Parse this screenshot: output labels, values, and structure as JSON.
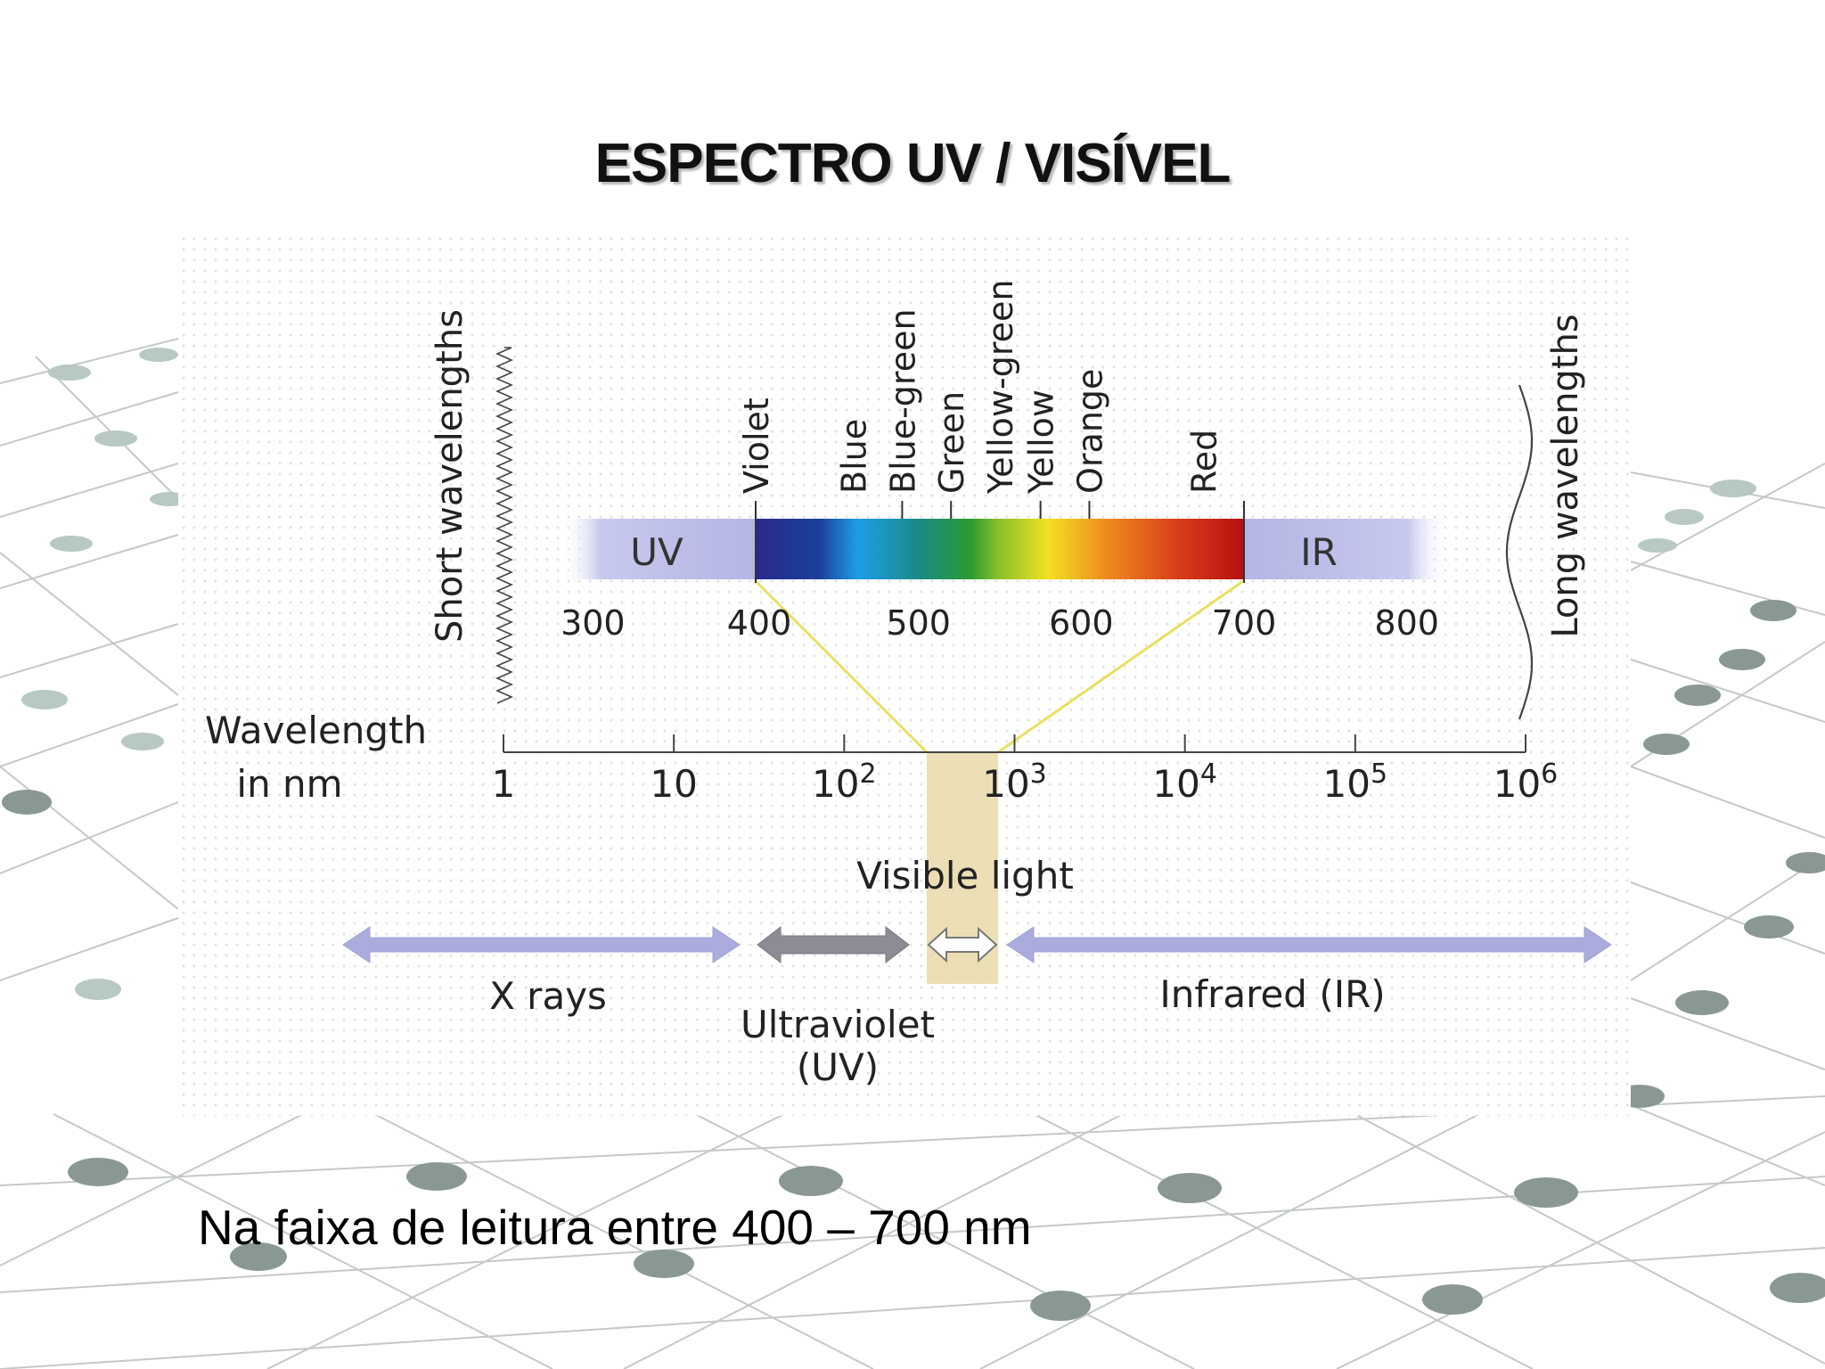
{
  "title": "ESPECTRO UV / VISÍVEL",
  "footer": "Na faixa de leitura entre 400 – 700 nm",
  "labels": {
    "short_wavelengths": "Short wavelengths",
    "long_wavelengths": "Long wavelengths",
    "uv_band": "UV",
    "ir_band": "IR",
    "wavelength": "Wavelength",
    "in_nm": "in nm",
    "visible_light": "Visible light",
    "x_rays": "X rays",
    "ultraviolet": "Ultraviolet",
    "ultraviolet_abbr": "(UV)",
    "infrared": "Infrared (IR)"
  },
  "colors": {
    "violet": "#2a2a8a",
    "blue": "#1e9ee8",
    "green": "#2a9a30",
    "yellow": "#f2e020",
    "orange": "#ee8a1e",
    "red": "#b80f10",
    "uv_ir_band": "#b9bbe6",
    "highlight": "#ead9a8",
    "connector": "#e8e060",
    "arrow": "#a9acdd",
    "uv_arrow": "#8c8c96"
  },
  "chart_data": {
    "type": "diagram",
    "visible_colors": [
      {
        "name": "Violet",
        "nm": 400
      },
      {
        "name": "Blue",
        "nm": 460
      },
      {
        "name": "Blue-green",
        "nm": 490
      },
      {
        "name": "Green",
        "nm": 520
      },
      {
        "name": "Yellow-green",
        "nm": 550
      },
      {
        "name": "Yellow",
        "nm": 575
      },
      {
        "name": "Orange",
        "nm": 605
      },
      {
        "name": "Red",
        "nm": 675
      }
    ],
    "color_tick_nm": [
      400,
      490,
      520,
      575,
      605,
      700
    ],
    "band_ticks": [
      "300",
      "400",
      "500",
      "600",
      "700",
      "800"
    ],
    "band_tick_nm": [
      300,
      400,
      500,
      600,
      700,
      800
    ],
    "log_axis": {
      "ticks": [
        {
          "base": "1",
          "exp": ""
        },
        {
          "base": "10",
          "exp": ""
        },
        {
          "base": "10",
          "exp": "2"
        },
        {
          "base": "10",
          "exp": "3"
        },
        {
          "base": "10",
          "exp": "4"
        },
        {
          "base": "10",
          "exp": "5"
        },
        {
          "base": "10",
          "exp": "6"
        }
      ],
      "range_nm": [
        1,
        1000000
      ]
    },
    "regions": [
      {
        "name": "X rays",
        "from_nm": 1,
        "to_nm": 100
      },
      {
        "name": "Ultraviolet (UV)",
        "from_nm": 100,
        "to_nm": 400
      },
      {
        "name": "Visible light",
        "from_nm": 400,
        "to_nm": 700
      },
      {
        "name": "Infrared (IR)",
        "from_nm": 700,
        "to_nm": 1000000
      }
    ]
  }
}
